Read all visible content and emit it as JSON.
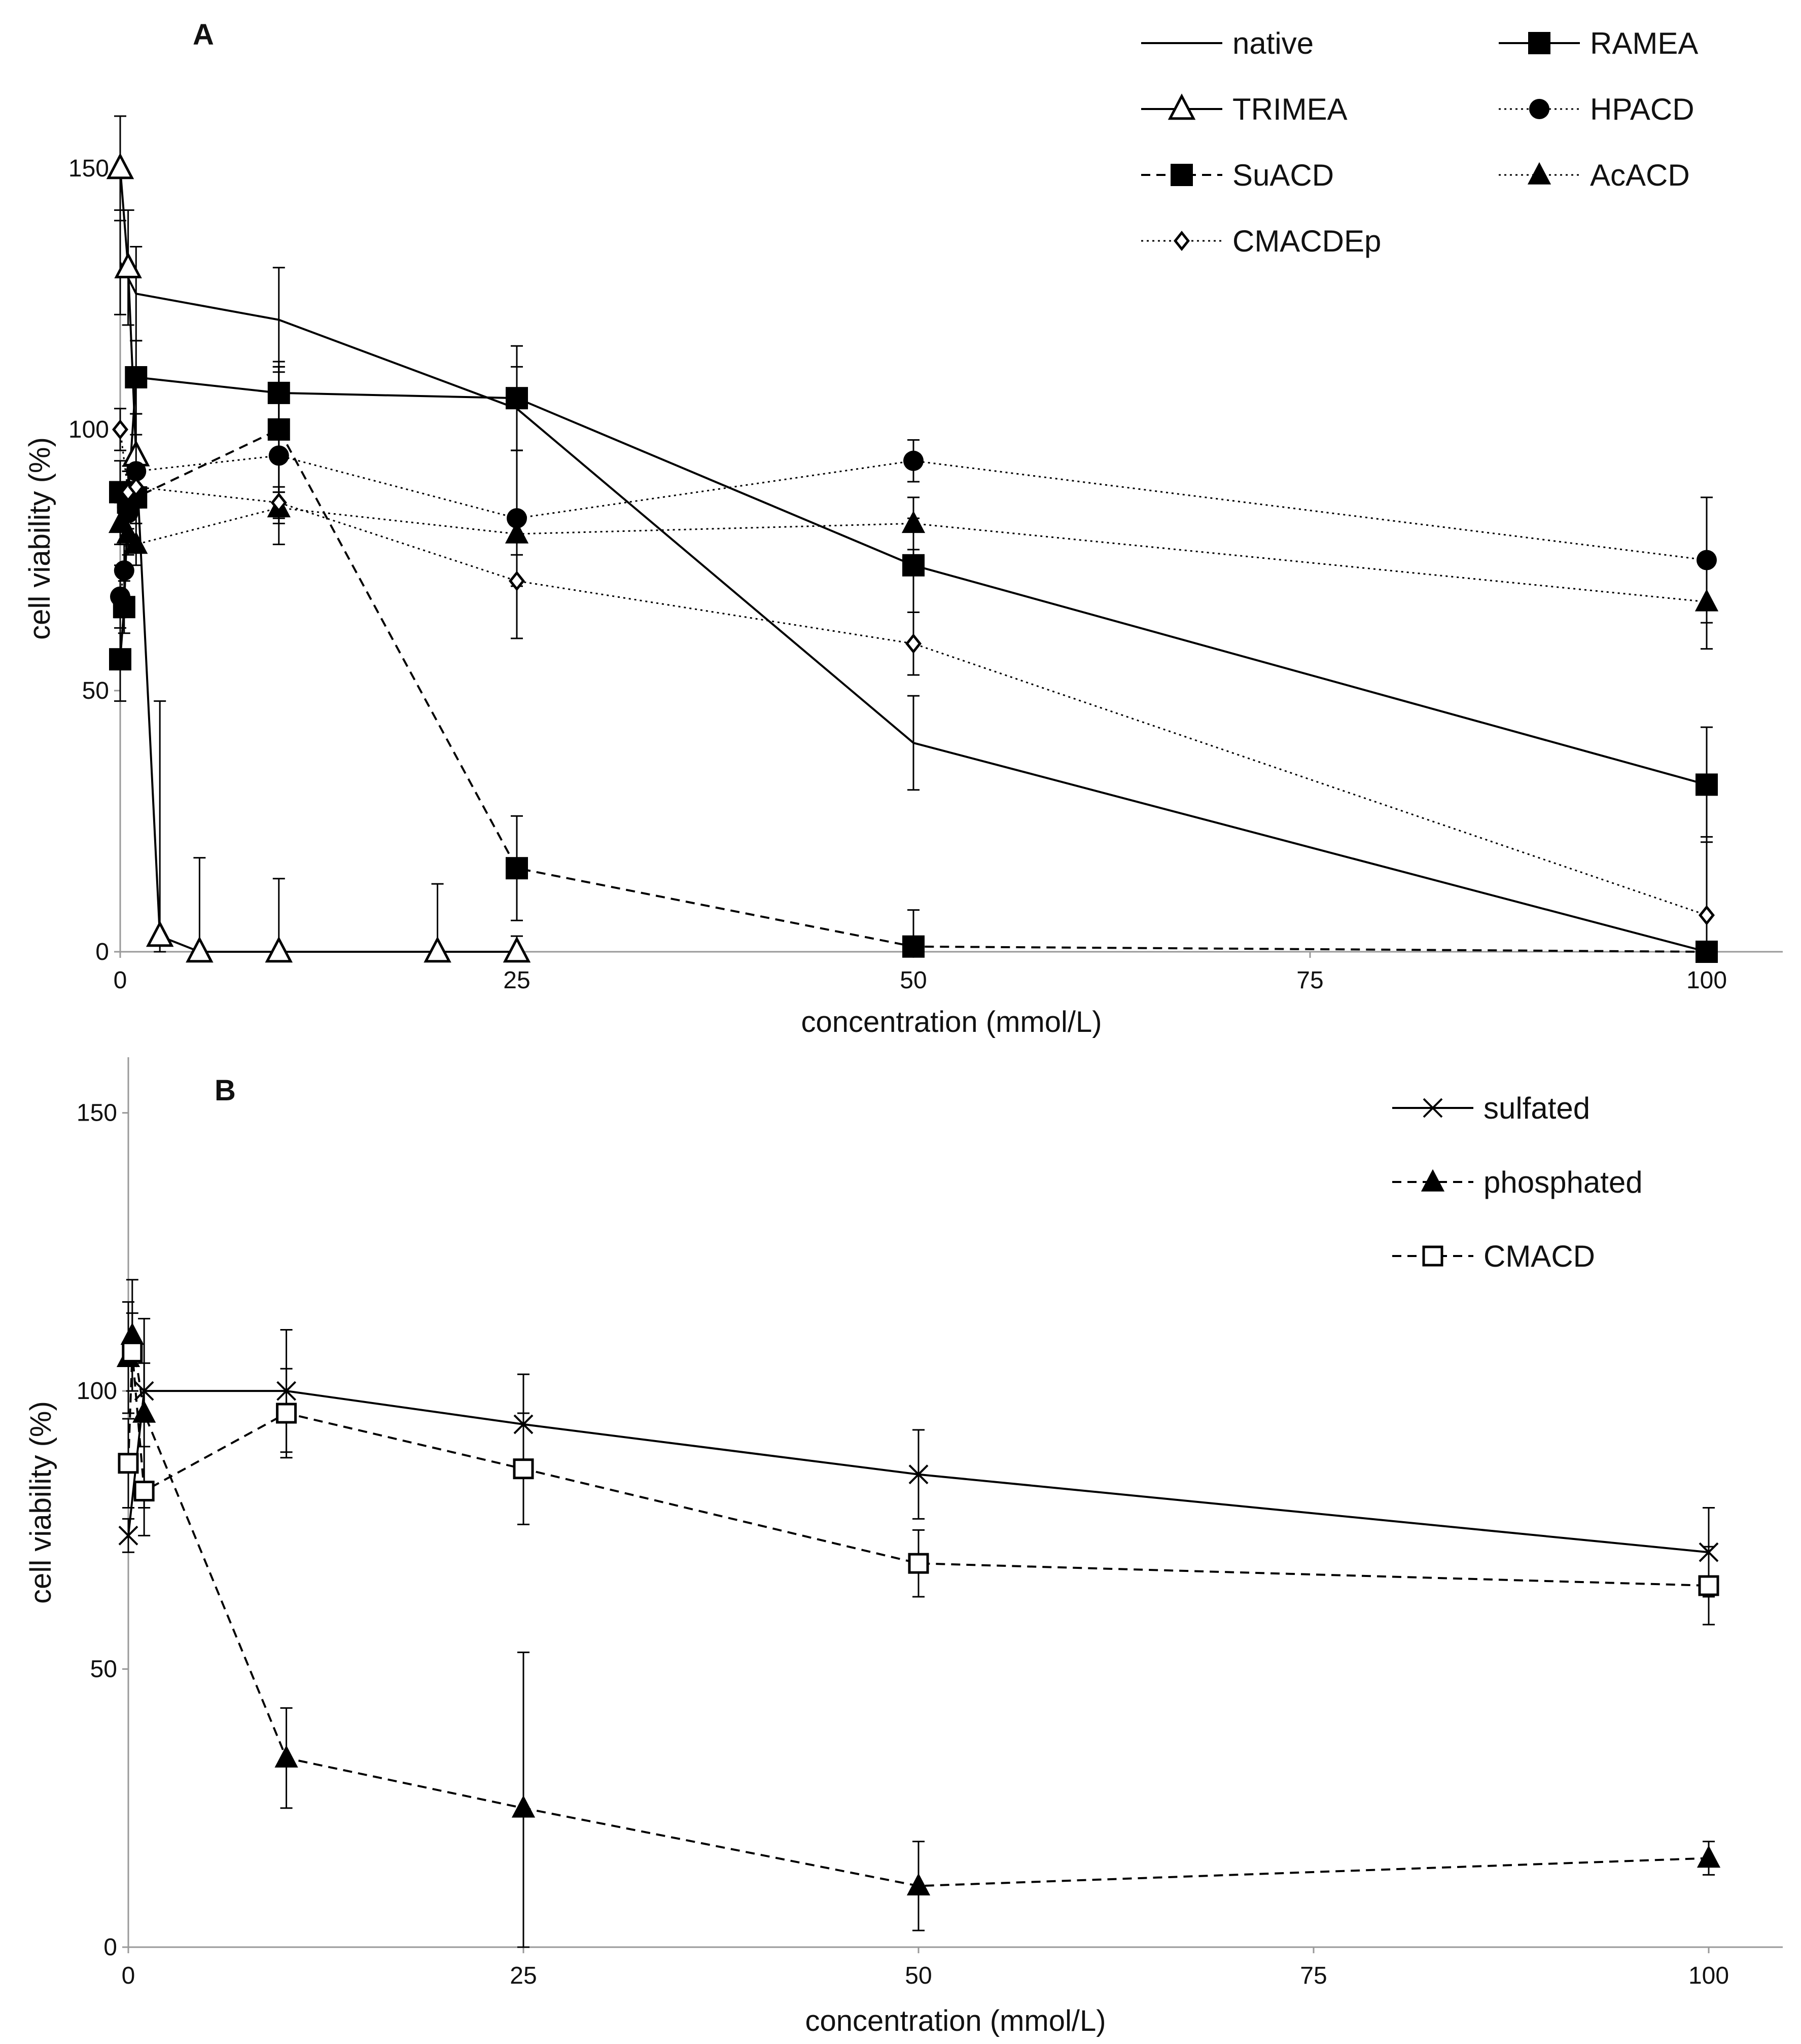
{
  "chart_data": [
    {
      "panel": "A",
      "type": "line",
      "xlabel": "concentration (mmol/L)",
      "ylabel": "cell viability (%)",
      "xlim": [
        0,
        100
      ],
      "ylim": [
        0,
        160
      ],
      "xticks": [
        0,
        25,
        50,
        75,
        100
      ],
      "yticks": [
        0,
        50,
        100,
        150
      ],
      "legend_position": "top-right",
      "series": [
        {
          "name": "native",
          "line": "solid",
          "marker": "none",
          "x": [
            0,
            1,
            10,
            25,
            50,
            100
          ],
          "y": [
            132,
            126,
            121,
            104,
            40,
            0
          ],
          "err": [
            10,
            9,
            10,
            8,
            9,
            0
          ]
        },
        {
          "name": "RAMEA",
          "line": "solid",
          "marker": "filled-square",
          "x": [
            0,
            0.25,
            0.5,
            1,
            10,
            25,
            50,
            100
          ],
          "y": [
            56,
            66,
            87,
            110,
            107,
            106,
            74,
            32
          ],
          "err": [
            8,
            5,
            6,
            7,
            6,
            10,
            9,
            11
          ]
        },
        {
          "name": "TRIMEA",
          "line": "solid",
          "marker": "open-triangle",
          "x": [
            0,
            0.5,
            1,
            2.5,
            5,
            10,
            20,
            25
          ],
          "y": [
            150,
            131,
            95,
            3,
            0,
            0,
            0,
            0
          ],
          "err": [
            10,
            11,
            8,
            45,
            18,
            14,
            13,
            3
          ]
        },
        {
          "name": "HPACD",
          "line": "dotted",
          "marker": "filled-circle",
          "x": [
            0,
            0.25,
            0.5,
            1,
            10,
            25,
            50,
            100
          ],
          "y": [
            68,
            73,
            84,
            92,
            95,
            83,
            94,
            75
          ],
          "err": [
            6,
            5,
            6,
            7,
            17,
            13,
            4,
            12
          ]
        },
        {
          "name": "SuACD",
          "line": "dashed",
          "marker": "filled-square",
          "x": [
            0,
            0.5,
            1,
            10,
            25,
            50,
            100
          ],
          "y": [
            88,
            86,
            87,
            100,
            16,
            1,
            0
          ],
          "err": [
            6,
            6,
            5,
            12,
            10,
            7,
            0
          ]
        },
        {
          "name": "AcACD",
          "line": "dotted",
          "marker": "filled-triangle",
          "x": [
            0,
            0.5,
            1,
            10,
            25,
            50,
            100
          ],
          "y": [
            82,
            80,
            78,
            85,
            80,
            82,
            67
          ],
          "err": [
            4,
            4,
            4,
            3,
            4,
            5,
            9
          ]
        },
        {
          "name": "CMACDEp",
          "line": "dotted",
          "marker": "open-diamond",
          "x": [
            0,
            0.5,
            1,
            10,
            25,
            50,
            100
          ],
          "y": [
            100,
            88,
            89,
            86,
            71,
            59,
            7
          ],
          "err": [
            4,
            4,
            4,
            3,
            11,
            6,
            15
          ]
        }
      ]
    },
    {
      "panel": "B",
      "type": "line",
      "xlabel": "concentration (mmol/L)",
      "ylabel": "cell viability (%)",
      "xlim": [
        0,
        100
      ],
      "ylim": [
        0,
        160
      ],
      "xticks": [
        0,
        25,
        50,
        75,
        100
      ],
      "yticks": [
        0,
        50,
        100,
        150
      ],
      "legend_position": "top-right",
      "series": [
        {
          "name": "sulfated",
          "line": "solid",
          "marker": "cross",
          "x": [
            0,
            1,
            10,
            25,
            50,
            100
          ],
          "y": [
            74,
            100,
            100,
            94,
            85,
            71
          ],
          "err": [
            3,
            5,
            11,
            9,
            8,
            8
          ]
        },
        {
          "name": "phosphated",
          "line": "dashed",
          "marker": "filled-triangle",
          "x": [
            0,
            0.25,
            1,
            10,
            25,
            50,
            100
          ],
          "y": [
            106,
            110,
            96,
            34,
            25,
            11,
            16
          ],
          "err": [
            10,
            10,
            17,
            9,
            28,
            8,
            3
          ]
        },
        {
          "name": "CMACD",
          "line": "dashed",
          "marker": "open-square",
          "x": [
            0,
            0.25,
            1,
            10,
            25,
            50,
            100
          ],
          "y": [
            87,
            107,
            82,
            96,
            86,
            69,
            65
          ],
          "err": [
            8,
            7,
            8,
            8,
            10,
            6,
            7
          ]
        }
      ]
    }
  ]
}
